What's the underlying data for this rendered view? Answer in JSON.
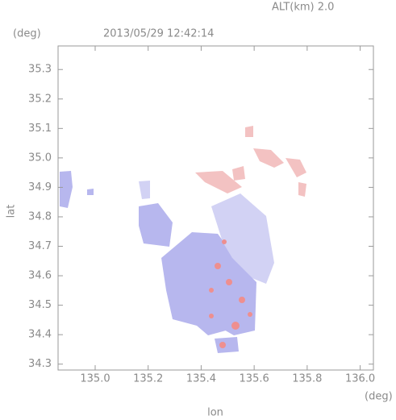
{
  "chart_data": {
    "type": "map",
    "title": "2013/05/29 12:42:14",
    "subtitle": "ALT(km) 2.0",
    "x_label": "lon",
    "y_label": "lat",
    "x_unit": "(deg)",
    "y_unit": "(deg)",
    "xlim": [
      134.86,
      136.05
    ],
    "ylim": [
      34.28,
      35.38
    ],
    "xticks": [
      {
        "value": 135,
        "label": "135.0"
      },
      135.2,
      135.4,
      135.6,
      135.8,
      {
        "value": 136,
        "label": "136.0"
      }
    ],
    "yticks": [
      34.3,
      34.4,
      34.5,
      34.6,
      34.7,
      34.8,
      34.9,
      {
        "value": 35,
        "label": "35.0"
      },
      35.1,
      35.2,
      35.3
    ]
  }
}
